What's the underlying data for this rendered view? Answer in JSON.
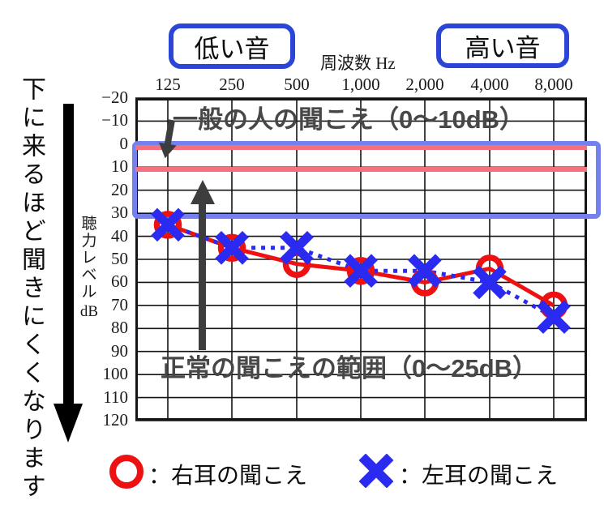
{
  "left_note": {
    "text": "下に来るほど聞きにくくなります"
  },
  "header": {
    "low_box_label": "低い音",
    "high_box_label": "高い音",
    "freq_axis_label": "周波数 Hz"
  },
  "annotations": {
    "normal_people": "一般の人の聞こえ（0～10dB）",
    "normal_range": "正常の聞こえの範囲（0～25dB）"
  },
  "y_axis_title": {
    "chars": [
      "聴",
      "力",
      "レ",
      "ベ",
      "ル"
    ],
    "unit": "dB"
  },
  "legend": {
    "right_ear_label": "：右耳の聞こえ",
    "left_ear_label": "：左耳の聞こえ"
  },
  "colors": {
    "right_ear": "#ee1111",
    "left_ear": "#2a2af0",
    "band_border": "#7380ee",
    "pink_line": "#f5717c",
    "box_border": "#2b46d6",
    "annotation_gray": "#474747",
    "grid": "#141414"
  },
  "chart_data": {
    "type": "line",
    "title": "オージオグラム (audiogram)",
    "x_label": "周波数 Hz",
    "y_label": "聴力レベル dB",
    "categories": [
      "125",
      "250",
      "500",
      "1,000",
      "2,000",
      "4,000",
      "8,000"
    ],
    "y_ticks": [
      "−20",
      "−10",
      "0",
      "10",
      "20",
      "30",
      "40",
      "50",
      "60",
      "70",
      "80",
      "90",
      "100",
      "110",
      "120"
    ],
    "ylim": [
      -20,
      120
    ],
    "y_step": 10,
    "y_inverted": true,
    "grid": true,
    "series": [
      {
        "name": "右耳の聞こえ",
        "marker": "circle",
        "line": "solid",
        "color": "#ee1111",
        "values": [
          35,
          45,
          52,
          55,
          60,
          54,
          70
        ]
      },
      {
        "name": "左耳の聞こえ",
        "marker": "x",
        "line": "dotted",
        "color": "#2a2af0",
        "values": [
          35,
          45,
          45,
          55,
          55,
          60,
          75
        ]
      }
    ],
    "bands": [
      {
        "label": "一般の人の聞こえ",
        "from": 0,
        "to": 10,
        "style": "pink lines at 0 and 10 dB"
      },
      {
        "label": "正常の聞こえの範囲",
        "from": 0,
        "to": 25,
        "style": "blue rounded rectangle"
      }
    ],
    "legend_position": "bottom"
  }
}
